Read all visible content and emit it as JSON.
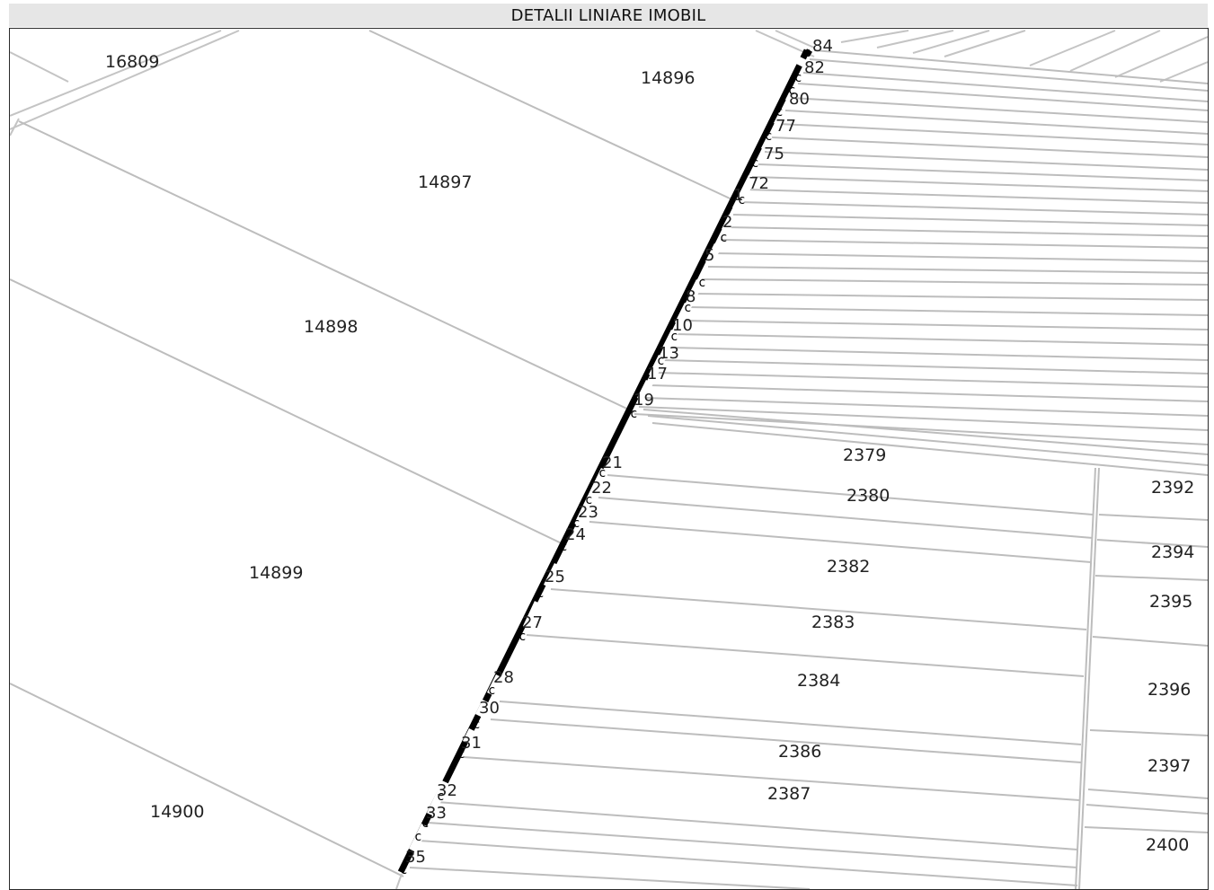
{
  "header": {
    "title": "DETALII LINIARE IMOBIL"
  },
  "parcel_labels": [
    "16809",
    "14896",
    "14897",
    "14898",
    "14899",
    "14900",
    "2379",
    "2380",
    "2382",
    "2383",
    "2384",
    "2386",
    "2387",
    "2392",
    "2394",
    "2395",
    "2396",
    "2397",
    "2400"
  ],
  "point_labels": [
    "84",
    "82",
    "80",
    "77",
    "75",
    "72",
    "1",
    "2",
    "5",
    "8",
    "10",
    "13",
    "17",
    "19",
    "21",
    "22",
    "23",
    "24",
    "25",
    "27",
    "28",
    "30",
    "31",
    "32",
    "33",
    "35"
  ],
  "colors": {
    "boundary": "#000000",
    "parcel_line": "#bdbdbd",
    "header_bg": "#e6e6e6"
  }
}
